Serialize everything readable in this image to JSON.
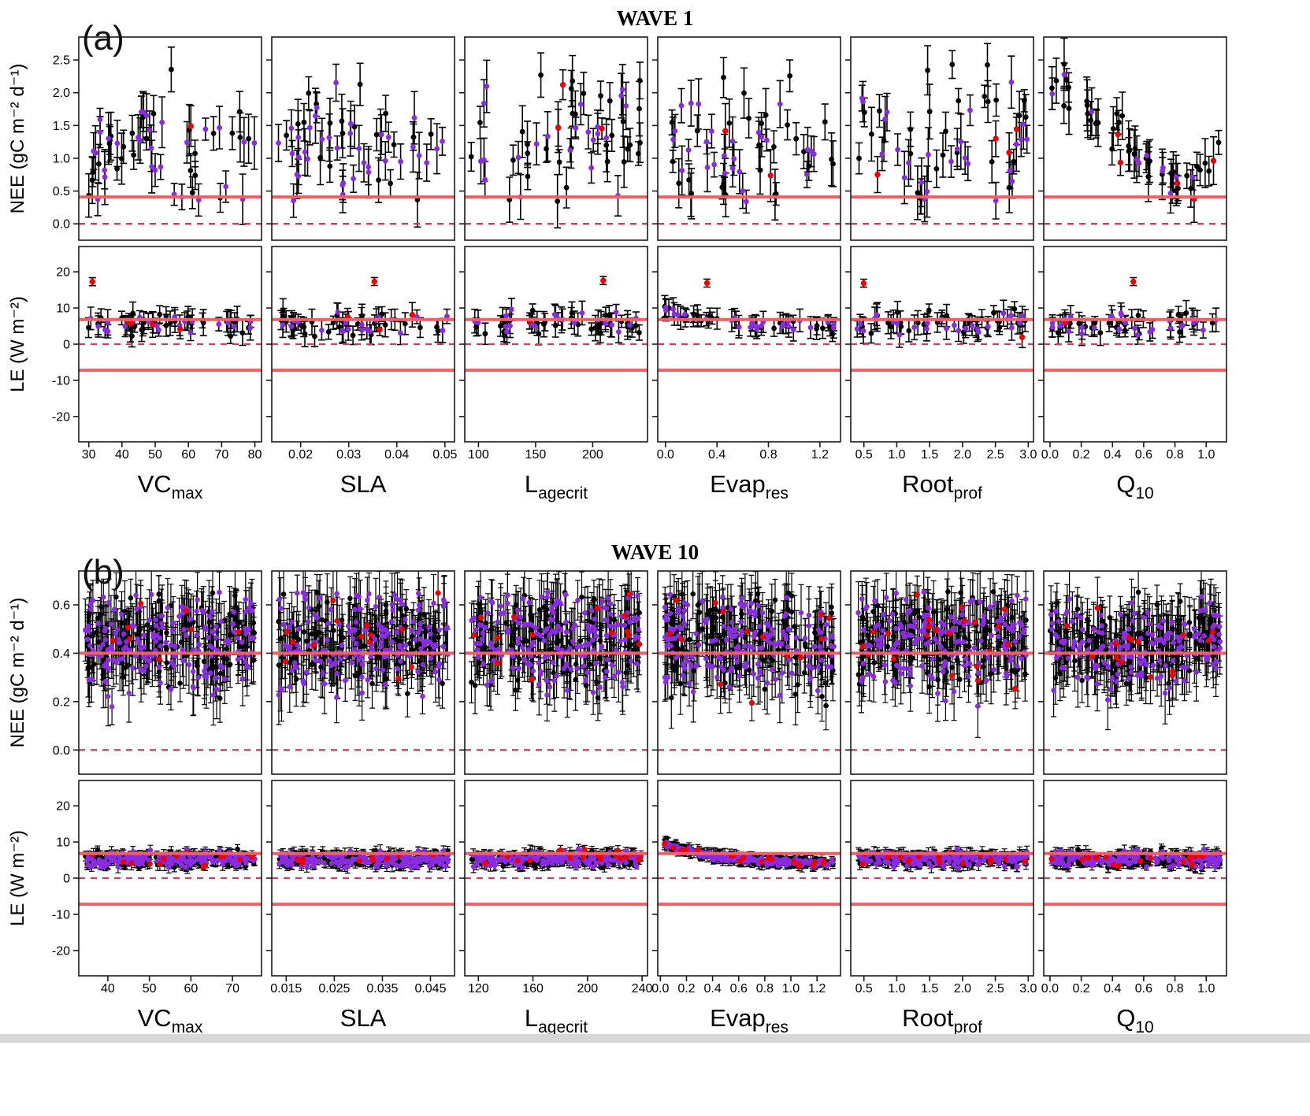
{
  "page": {
    "background": "#ffffff"
  },
  "chart_data": {
    "type": "scatter",
    "waves": [
      {
        "title": "WAVE 1",
        "panel_label": "(a)",
        "n_points": 58,
        "point_r": 3.4,
        "err_width": 1.6,
        "err_cap": 4.5,
        "color_probs": {
          "red": 0.04,
          "purple": 0.44
        },
        "rows": [
          {
            "key": "nee",
            "ylabel": "NEE (gC m⁻² d⁻¹)",
            "ytick_labels": [
              "0.0",
              "0.5",
              "1.0",
              "1.5",
              "2.0",
              "2.5"
            ],
            "ytick_vals": [
              0,
              0.5,
              1,
              1.5,
              2,
              2.5
            ],
            "yrange": [
              -0.25,
              2.85
            ],
            "ref_lines": [
              {
                "y": 0.41,
                "style": "solid"
              },
              {
                "y": 0,
                "style": "dashed"
              }
            ],
            "default_spec": {
              "trend": "flat",
              "base": 1.18,
              "sd": 0.5,
              "clamp": [
                0.33,
                2.62
              ],
              "err": [
                0.16,
                0.42
              ]
            },
            "overrides": {
              "q10": {
                "trend": "dec_rise",
                "hi": 2.2,
                "drop": 1.75,
                "knee": 0.78,
                "rise": 5.5,
                "sd": 0.16,
                "clamp": [
                  0.3,
                  2.62
                ],
                "err": [
                  0.16,
                  0.4
                ]
              }
            }
          },
          {
            "key": "le",
            "ylabel": "LE (W m⁻²)",
            "ytick_labels": [
              "-20",
              "-10",
              "0",
              "10",
              "20"
            ],
            "ytick_vals": [
              -20,
              -10,
              0,
              10,
              20
            ],
            "yrange": [
              -27,
              27
            ],
            "ref_lines": [
              {
                "y": 6.8,
                "style": "solid"
              },
              {
                "y": -7.2,
                "style": "solid"
              },
              {
                "y": 0,
                "style": "dashed"
              }
            ],
            "red_outlier": {
              "y": 17.2
            },
            "default_spec": {
              "trend": "flat",
              "base": 5.6,
              "sd": 1.6,
              "clamp": [
                1.3,
                11
              ],
              "err": [
                1.6,
                3.6
              ]
            },
            "overrides": {
              "evapres": {
                "trend": "exp_dec",
                "hi": 9.6,
                "lo": 4.4,
                "k": 2.8,
                "sd": 0.8,
                "clamp": [
                  2,
                  11.5
                ],
                "err": [
                  1.6,
                  3.2
                ]
              }
            }
          }
        ],
        "columns": [
          {
            "key": "vcmax",
            "label": "VC",
            "sub": "max",
            "xrange": [
              27,
              82
            ],
            "xtick_vals": [
              30,
              40,
              50,
              60,
              70,
              80
            ],
            "xtick_labels": [
              "30",
              "40",
              "50",
              "60",
              "70",
              "80"
            ]
          },
          {
            "key": "sla",
            "label": "SLA",
            "sub": "",
            "xrange": [
              0.014,
              0.052
            ],
            "xtick_vals": [
              0.02,
              0.03,
              0.04,
              0.05
            ],
            "xtick_labels": [
              "0.02",
              "0.03",
              "0.04",
              "0.05"
            ]
          },
          {
            "key": "lagecrit",
            "label": "L",
            "sub": "agecrit",
            "xrange": [
              88,
              248
            ],
            "xtick_vals": [
              100,
              150,
              200
            ],
            "xtick_labels": [
              "100",
              "150",
              "200"
            ]
          },
          {
            "key": "evapres",
            "label": "Evap",
            "sub": "res",
            "xrange": [
              -0.06,
              1.36
            ],
            "xtick_vals": [
              0,
              0.4,
              0.8,
              1.2
            ],
            "xtick_labels": [
              "0.0",
              "0.4",
              "0.8",
              "1.2"
            ]
          },
          {
            "key": "rootprof",
            "label": "Root",
            "sub": "prof",
            "xrange": [
              0.3,
              3.08
            ],
            "xtick_vals": [
              0.5,
              1,
              1.5,
              2,
              2.5,
              3
            ],
            "xtick_labels": [
              "0.5",
              "1.0",
              "1.5",
              "2.0",
              "2.5",
              "3.0"
            ]
          },
          {
            "key": "q10",
            "label": "Q",
            "sub": "10",
            "xrange": [
              -0.04,
              1.13
            ],
            "xtick_vals": [
              0,
              0.2,
              0.4,
              0.6,
              0.8,
              1
            ],
            "xtick_labels": [
              "0.0",
              "0.2",
              "0.4",
              "0.6",
              "0.8",
              "1.0"
            ]
          }
        ]
      },
      {
        "title": "WAVE 10",
        "panel_label": "(b)",
        "n_points": 300,
        "point_r": 3.3,
        "err_width": 1.2,
        "err_cap": 3.5,
        "color_probs": {
          "red": 0.05,
          "purple": 0.6
        },
        "rows": [
          {
            "key": "nee",
            "ylabel": "NEE (gC m⁻² d⁻¹)",
            "ytick_labels": [
              "0.0",
              "0.2",
              "0.4",
              "0.6"
            ],
            "ytick_vals": [
              0,
              0.2,
              0.4,
              0.6
            ],
            "yrange": [
              -0.1,
              0.74
            ],
            "ref_lines": [
              {
                "y": 0.4,
                "style": "solid"
              },
              {
                "y": 0,
                "style": "dashed"
              }
            ],
            "default_spec": {
              "trend": "flat",
              "base": 0.45,
              "sd": 0.1,
              "clamp": [
                0.155,
                0.655
              ],
              "err": [
                0.07,
                0.13
              ]
            },
            "overrides": {
              "q10": {
                "trend": "dip",
                "base": 0.47,
                "amp": 0.07,
                "sd": 0.09,
                "clamp": [
                  0.16,
                  0.655
                ],
                "err": [
                  0.07,
                  0.13
                ]
              }
            }
          },
          {
            "key": "le",
            "ylabel": "LE (W m⁻²)",
            "ytick_labels": [
              "-20",
              "-10",
              "0",
              "10",
              "20"
            ],
            "ytick_vals": [
              -20,
              -10,
              0,
              10,
              20
            ],
            "yrange": [
              -27,
              27
            ],
            "ref_lines": [
              {
                "y": 6.8,
                "style": "solid"
              },
              {
                "y": -7.2,
                "style": "solid"
              },
              {
                "y": 0,
                "style": "dashed"
              }
            ],
            "default_spec": {
              "trend": "flat",
              "base": 5.3,
              "sd": 1.05,
              "clamp": [
                2.9,
                10.4
              ],
              "err": [
                0.7,
                1.8
              ]
            },
            "overrides": {
              "evapres": {
                "trend": "exp_dec",
                "hi": 9.8,
                "lo": 4.0,
                "k": 3.4,
                "sd": 0.5,
                "clamp": [
                  2.6,
                  11
                ],
                "err": [
                  0.7,
                  1.6
                ]
              }
            }
          }
        ],
        "columns": [
          {
            "key": "vcmax",
            "label": "VC",
            "sub": "max",
            "xrange": [
              33,
              77
            ],
            "xtick_vals": [
              40,
              50,
              60,
              70
            ],
            "xtick_labels": [
              "40",
              "50",
              "60",
              "70"
            ]
          },
          {
            "key": "sla",
            "label": "SLA",
            "sub": "",
            "xrange": [
              0.012,
              0.05
            ],
            "xtick_vals": [
              0.015,
              0.025,
              0.035,
              0.045
            ],
            "xtick_labels": [
              "0.015",
              "0.025",
              "0.035",
              "0.045"
            ]
          },
          {
            "key": "lagecrit",
            "label": "L",
            "sub": "agecrit",
            "xrange": [
              110,
              244
            ],
            "xtick_vals": [
              120,
              160,
              200,
              240
            ],
            "xtick_labels": [
              "120",
              "160",
              "200",
              "240"
            ]
          },
          {
            "key": "evapres",
            "label": "Evap",
            "sub": "res",
            "xrange": [
              -0.02,
              1.38
            ],
            "xtick_vals": [
              0,
              0.2,
              0.4,
              0.6,
              0.8,
              1,
              1.2
            ],
            "xtick_labels": [
              "0.0",
              "0.2",
              "0.4",
              "0.6",
              "0.8",
              "1.0",
              "1.2"
            ]
          },
          {
            "key": "rootprof",
            "label": "Root",
            "sub": "prof",
            "xrange": [
              0.3,
              3.08
            ],
            "xtick_vals": [
              0.5,
              1,
              1.5,
              2,
              2.5,
              3
            ],
            "xtick_labels": [
              "0.5",
              "1.0",
              "1.5",
              "2.0",
              "2.5",
              "3.0"
            ]
          },
          {
            "key": "q10",
            "label": "Q",
            "sub": "10",
            "xrange": [
              -0.04,
              1.13
            ],
            "xtick_vals": [
              0,
              0.2,
              0.4,
              0.6,
              0.8,
              1
            ],
            "xtick_labels": [
              "0.0",
              "0.2",
              "0.4",
              "0.6",
              "0.8",
              "1.0"
            ]
          }
        ]
      }
    ],
    "style": {
      "black": "#000000",
      "purple": "#8a2be2",
      "red": "#ee0000",
      "ref_solid": "#ef6066",
      "ref_dashed": "#c8405a",
      "frame": "#1a1a1a"
    }
  }
}
